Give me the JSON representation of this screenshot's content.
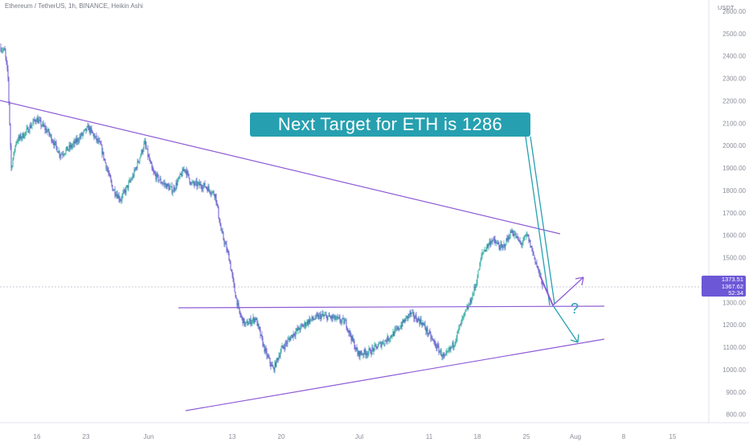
{
  "header": {
    "symbol": "Ethereum / TetherUS, 1h, BINANCE, Heikin Ashi",
    "currency": "USDT"
  },
  "colors": {
    "candle_up": "#26a69a",
    "candle_down": "#5b4fc9",
    "trendline": "#8e5bd6",
    "callout": "#26a0b0",
    "price_label": "#6c57d6"
  },
  "chart_data": {
    "type": "candlestick",
    "style": "Heikin Ashi",
    "timeframe": "1h",
    "ylim": [
      750,
      2610
    ],
    "y_ticks": [
      800,
      900,
      1000,
      1100,
      1200,
      1300,
      1400,
      1500,
      1600,
      1700,
      1800,
      1900,
      2000,
      2100,
      2200,
      2300,
      2400,
      2500,
      2600
    ],
    "y_tick_labels": [
      "800.00",
      "900.00",
      "1000.00",
      "1100.00",
      "1200.00",
      "1300.00",
      "1400.00",
      "1500.00",
      "1600.00",
      "1700.00",
      "1800.00",
      "1900.00",
      "2000.00",
      "2100.00",
      "2200.00",
      "2300.00",
      "2400.00",
      "2500.00",
      "2600.00"
    ],
    "x_tick_labels": [
      "16",
      "23",
      "Jun",
      "13",
      "20",
      "Jul",
      "11",
      "18",
      "25",
      "Aug",
      "8",
      "15"
    ],
    "approx_price_path": [
      [
        "start",
        2440
      ],
      [
        "May 13",
        2050
      ],
      [
        "May 20",
        2080
      ],
      [
        "May 25",
        1960
      ],
      [
        "May 28",
        1760
      ],
      [
        "Jun 1",
        2010
      ],
      [
        "Jun 4",
        1800
      ],
      [
        "Jun 8",
        1900
      ],
      [
        "Jun 10",
        1800
      ],
      [
        "Jun 13",
        1550
      ],
      [
        "Jun 14",
        1250
      ],
      [
        "Jun 18",
        1000
      ],
      [
        "Jun 19",
        1100
      ],
      [
        "Jun 24",
        1220
      ],
      [
        "Jun 27",
        1250
      ],
      [
        "Jul 1",
        1050
      ],
      [
        "Jul 5",
        1100
      ],
      [
        "Jul 8",
        1200
      ],
      [
        "Jul 11",
        1150
      ],
      [
        "Jul 13",
        1050
      ],
      [
        "Jul 16",
        1280
      ],
      [
        "Jul 18",
        1500
      ],
      [
        "Jul 21",
        1580
      ],
      [
        "Jul 24",
        1570
      ],
      [
        "Jul 25",
        1450
      ],
      [
        "Jul 26",
        1374
      ]
    ],
    "current_prices": [
      "1373.51",
      "1367.62"
    ],
    "countdown": "52:34",
    "drawings": {
      "descending_resistance": "upper trendline from ~2200 falling to ~1610",
      "horizontal_level": 1286,
      "ascending_support": "lower trendline rising from ~820 to ~1130"
    },
    "annotations": [
      "Next Target for ETH is 1286",
      "?"
    ]
  }
}
